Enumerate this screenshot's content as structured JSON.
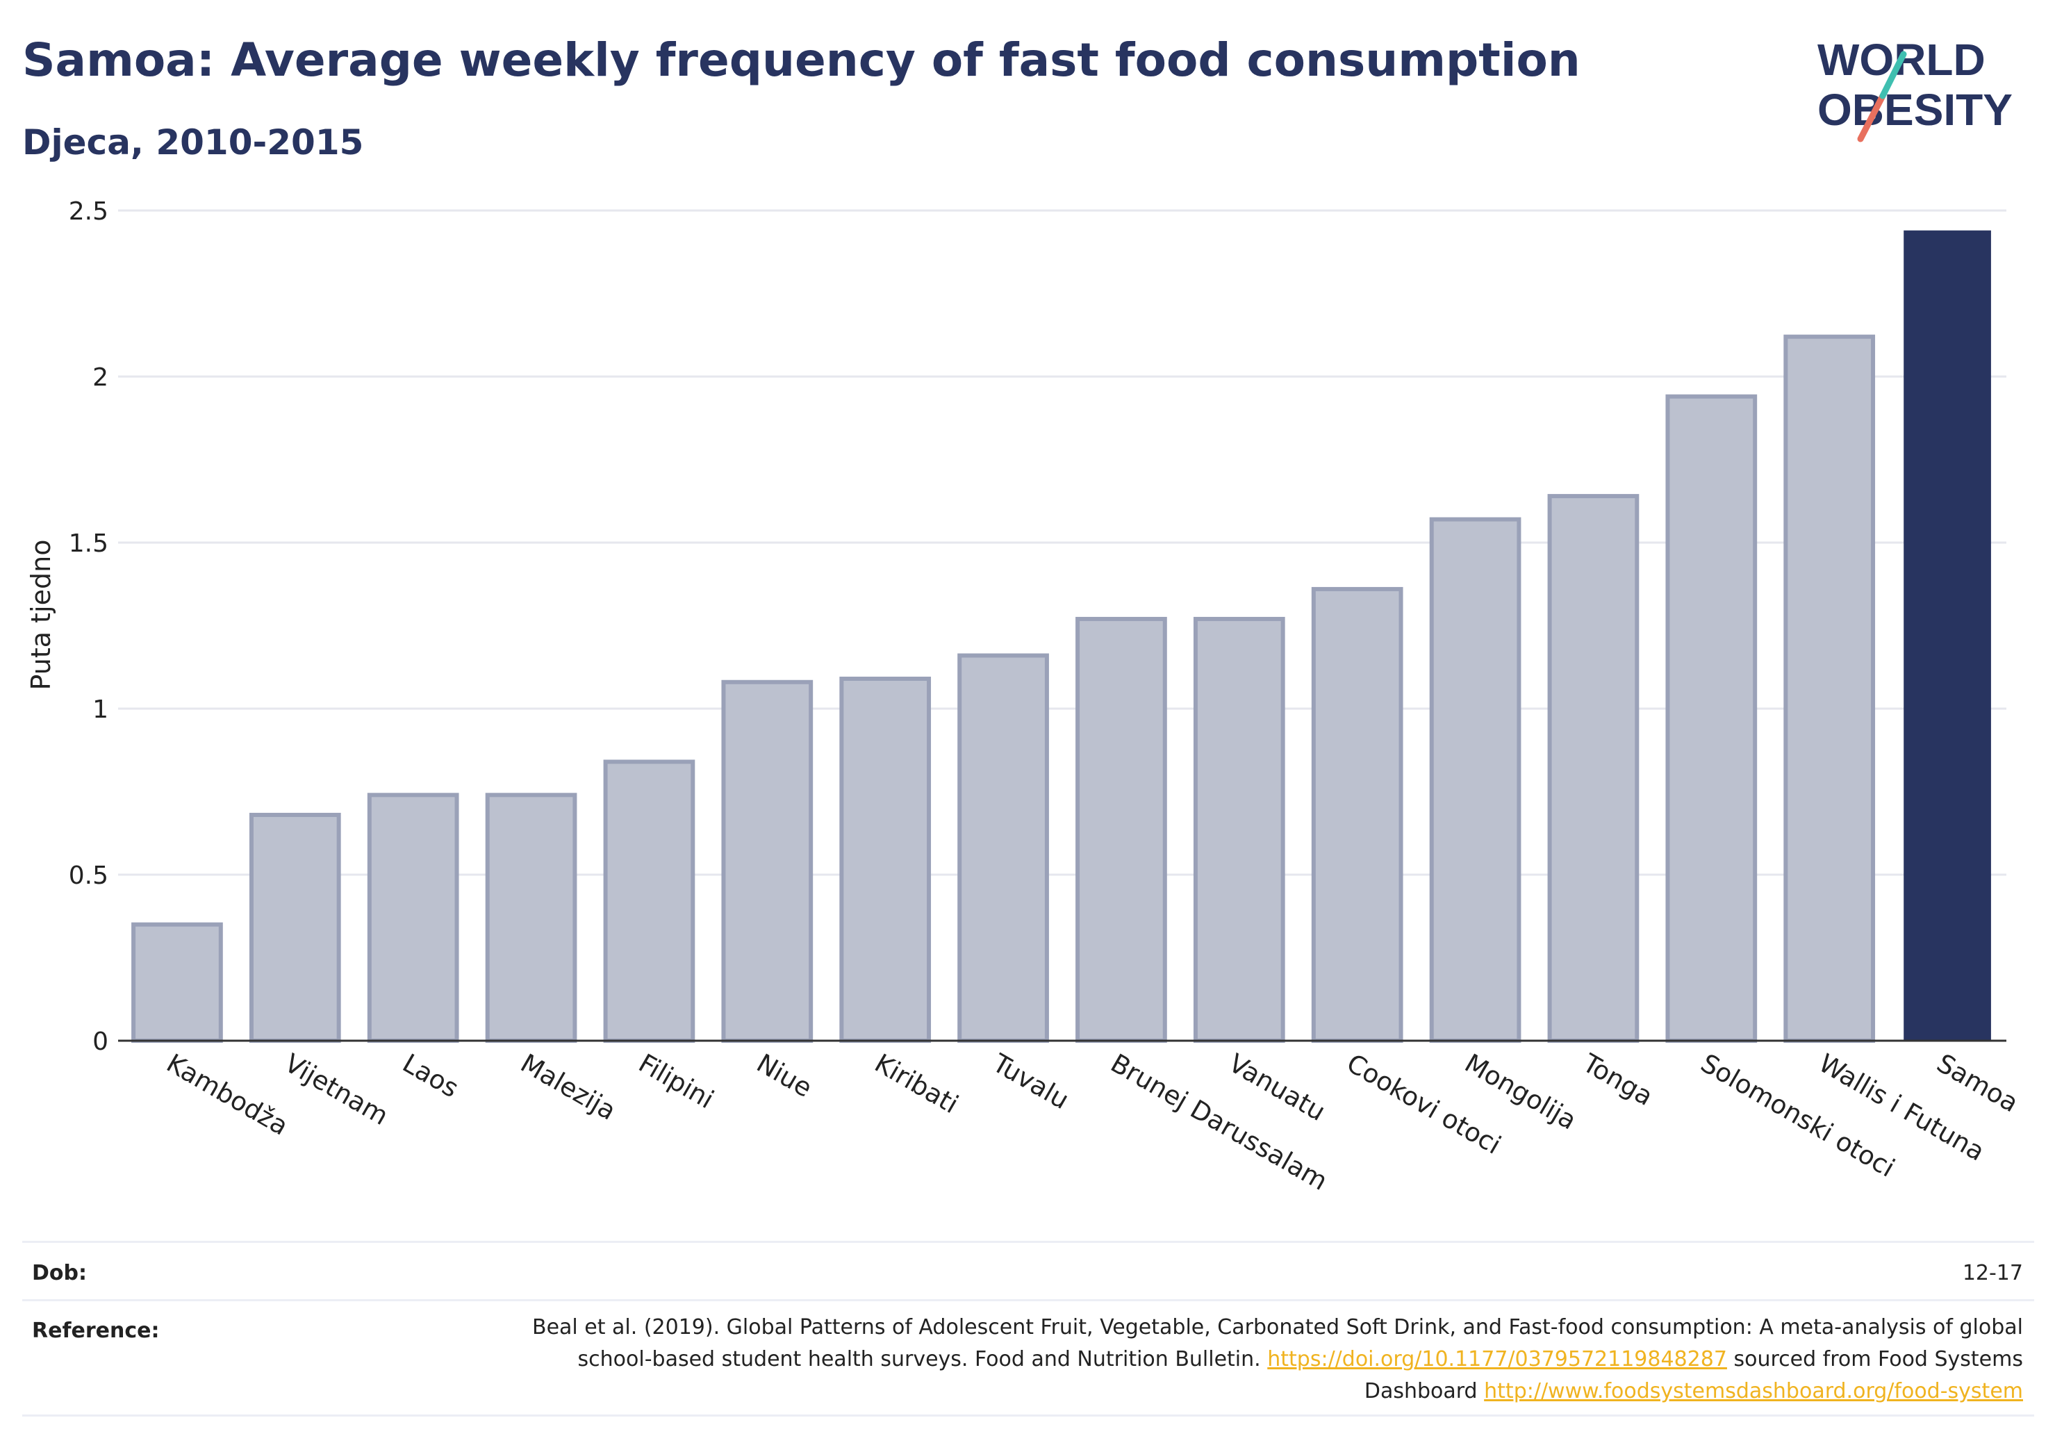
{
  "title": "Samoa: Average weekly frequency of fast food consumption",
  "subtitle": "Djeca, 2010-2015",
  "logo": {
    "line1": "WORLD",
    "line2": "OBESITY"
  },
  "colors": {
    "title": "#283460",
    "highlight_bar": "#283460",
    "bar_fill": "#bcc1cf",
    "bar_edge": "#9aa1b8",
    "grid": "#e6e7ee",
    "link": "#f0b320",
    "logo_slash_top": "#3fbfb0",
    "logo_slash_bottom": "#e8705e"
  },
  "chart_data": {
    "type": "bar",
    "ylabel": "Puta tjedno",
    "xlabel": "",
    "ylim": [
      0,
      2.5
    ],
    "yticks": [
      {
        "value": 0,
        "label": "0"
      },
      {
        "value": 0.5,
        "label": "0.5"
      },
      {
        "value": 1,
        "label": "1"
      },
      {
        "value": 1.5,
        "label": "1.5"
      },
      {
        "value": 2,
        "label": "2"
      },
      {
        "value": 2.5,
        "label": "2.5"
      }
    ],
    "grid": true,
    "categories": [
      "Kambodža",
      "Vijetnam",
      "Laos",
      "Malezija",
      "Filipini",
      "Niue",
      "Kiribati",
      "Tuvalu",
      "Brunej Darussalam",
      "Vanuatu",
      "Cookovi otoci",
      "Mongolija",
      "Tonga",
      "Solomonski otoci",
      "Wallis i Futuna",
      "Samoa"
    ],
    "values": [
      0.35,
      0.68,
      0.74,
      0.74,
      0.84,
      1.08,
      1.09,
      1.16,
      1.27,
      1.27,
      1.36,
      1.57,
      1.64,
      1.94,
      2.12,
      2.44
    ],
    "highlight": "Samoa"
  },
  "footer": {
    "age_label": "Dob:",
    "age_value": "12-17",
    "reference_label": "Reference:",
    "reference_text_1": "Beal et al. (2019). Global Patterns of Adolescent Fruit, Vegetable, Carbonated Soft Drink, and Fast-food consumption: A meta-analysis of global school-based student health surveys. Food and Nutrition Bulletin.",
    "reference_link_1": "https://doi.org/10.1177/0379572119848287",
    "reference_text_2": "sourced from Food Systems Dashboard",
    "reference_link_2": "http://www.foodsystemsdashboard.org/food-system"
  }
}
